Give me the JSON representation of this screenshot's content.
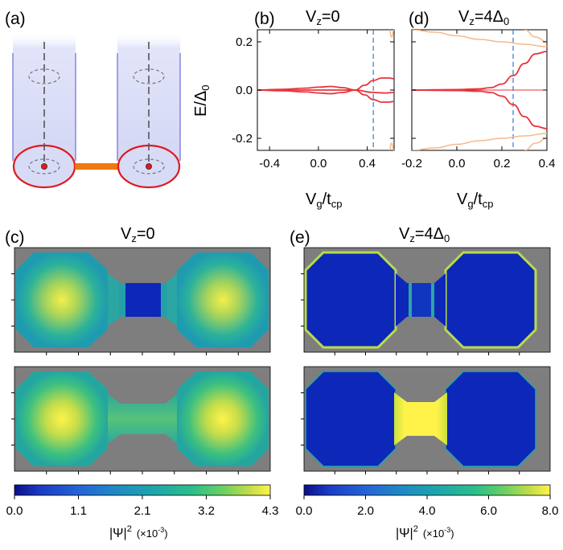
{
  "panels": {
    "a": "(a)",
    "b": "(b)",
    "c": "(c)",
    "d": "(d)",
    "e": "(e)"
  },
  "colors": {
    "red_line": "#e8343b",
    "orange_line": "#f7b98a",
    "dashed_blue": "#3a78c8",
    "cyl_fill": "#d9dcf6",
    "cyl_edge": "#6c6cd8",
    "disk_edge": "#e0181e",
    "bridge": "#f07810",
    "map_bg": "#7e7e7e"
  },
  "colormap": {
    "name": "viridis",
    "stops": [
      "#0b0f8a",
      "#1a3cc4",
      "#2563d8",
      "#1e8bc4",
      "#1fa6a8",
      "#2cbf8a",
      "#6fd061",
      "#c4dd4a",
      "#fff34a",
      "#ffffa0"
    ]
  },
  "chart_data": [
    {
      "panel": "(b)",
      "type": "line",
      "title": "V_z=0",
      "xlabel": "V_g/t_cp",
      "ylabel": "E/Δ_0",
      "xlim": [
        -0.5,
        0.62
      ],
      "ylim": [
        -0.25,
        0.25
      ],
      "xticks": [
        -0.4,
        0.0,
        0.4
      ],
      "xtick_labels": [
        "-0.4",
        "0.0",
        "0.4"
      ],
      "yticks": [
        -0.2,
        0.0,
        0.2
      ],
      "ytick_labels": [
        "-0.2",
        "0.0",
        "0.2"
      ],
      "vline": 0.45,
      "series": [
        {
          "x": [
            -0.5,
            -0.3,
            -0.1,
            0.0,
            0.1,
            0.2,
            0.3,
            0.38,
            0.45,
            0.52,
            0.58,
            0.62
          ],
          "values": [
            0.0,
            0.003,
            0.008,
            0.012,
            0.015,
            0.01,
            0.0,
            -0.02,
            -0.04,
            -0.05,
            -0.05,
            -0.047
          ],
          "color": "red"
        },
        {
          "x": [
            -0.5,
            -0.3,
            -0.1,
            0.0,
            0.1,
            0.2,
            0.3,
            0.38,
            0.45,
            0.52,
            0.58,
            0.62
          ],
          "values": [
            0.0,
            -0.003,
            -0.008,
            -0.012,
            -0.015,
            -0.01,
            0.0,
            0.02,
            0.04,
            0.05,
            0.05,
            0.047
          ],
          "color": "red"
        },
        {
          "x": [
            -0.5,
            0.0,
            0.3,
            0.45,
            0.55,
            0.62
          ],
          "values": [
            0.0,
            0.0,
            0.0,
            -0.01,
            -0.012,
            -0.01
          ],
          "color": "red"
        },
        {
          "x": [
            0.58,
            0.6,
            0.62
          ],
          "values": [
            0.25,
            0.22,
            0.25
          ],
          "color": "orange"
        },
        {
          "x": [
            0.58,
            0.6,
            0.62
          ],
          "values": [
            -0.25,
            -0.22,
            -0.25
          ],
          "color": "orange"
        }
      ]
    },
    {
      "panel": "(d)",
      "type": "line",
      "title": "V_z=4Δ_0",
      "xlabel": "V_g/t_cp",
      "ylabel": "",
      "xlim": [
        -0.2,
        0.4
      ],
      "ylim": [
        -0.25,
        0.25
      ],
      "xticks": [
        -0.2,
        0.0,
        0.2,
        0.4
      ],
      "xtick_labels": [
        "-0.2",
        "0.0",
        "0.2",
        "0.4"
      ],
      "yticks": [
        -0.2,
        0.0,
        0.2
      ],
      "vline": 0.25,
      "series": [
        {
          "x": [
            -0.2,
            -0.1,
            0.0,
            0.1,
            0.15,
            0.2,
            0.25,
            0.3,
            0.35,
            0.4
          ],
          "values": [
            0.0,
            0.001,
            0.002,
            0.005,
            0.01,
            0.025,
            0.06,
            0.11,
            0.15,
            0.16
          ],
          "color": "red"
        },
        {
          "x": [
            -0.2,
            -0.1,
            0.0,
            0.1,
            0.15,
            0.2,
            0.25,
            0.3,
            0.35,
            0.4
          ],
          "values": [
            0.0,
            -0.001,
            -0.002,
            -0.005,
            -0.01,
            -0.025,
            -0.06,
            -0.11,
            -0.15,
            -0.16
          ],
          "color": "red"
        },
        {
          "x": [
            -0.2,
            0.4
          ],
          "values": [
            0.0,
            0.0
          ],
          "color": "red_thin"
        },
        {
          "x": [
            -0.2,
            -0.1,
            0.0,
            0.1,
            0.2,
            0.3,
            0.4
          ],
          "values": [
            0.25,
            0.24,
            0.225,
            0.21,
            0.2,
            0.19,
            0.18
          ],
          "color": "orange"
        },
        {
          "x": [
            -0.2,
            -0.1,
            0.0,
            0.1,
            0.2,
            0.3,
            0.4
          ],
          "values": [
            -0.25,
            -0.24,
            -0.225,
            -0.21,
            -0.2,
            -0.19,
            -0.18
          ],
          "color": "orange"
        },
        {
          "x": [
            0.3,
            0.35,
            0.4
          ],
          "values": [
            0.25,
            0.22,
            0.2
          ],
          "color": "orange"
        },
        {
          "x": [
            0.3,
            0.35,
            0.4
          ],
          "values": [
            -0.25,
            -0.22,
            -0.2
          ],
          "color": "orange"
        }
      ]
    },
    {
      "panel": "(c)",
      "type": "heatmap",
      "title": "V_z=0",
      "colorbar_ticks": [
        "0.0",
        "1.1",
        "2.1",
        "3.2",
        "4.3"
      ],
      "colorbar_label": "|Ψ|² (×10⁻³)",
      "maps": [
        {
          "left_peak": 0.75,
          "right_peak": 0.75,
          "bridge": 0.05,
          "edge": 0.45
        },
        {
          "left_peak": 0.95,
          "right_peak": 0.95,
          "bridge": 0.55,
          "edge": 0.5
        }
      ]
    },
    {
      "panel": "(e)",
      "type": "heatmap",
      "title": "V_z=4Δ_0",
      "colorbar_ticks": [
        "0.0",
        "2.0",
        "4.0",
        "6.0",
        "8.0"
      ],
      "colorbar_label": "|Ψ|² (×10⁻³)",
      "maps": [
        {
          "left_peak": 0.02,
          "right_peak": 0.02,
          "bridge": 0.08,
          "edge": 0.6
        },
        {
          "left_peak": 0.02,
          "right_peak": 0.02,
          "bridge": 0.95,
          "edge": 0.3
        }
      ]
    }
  ],
  "labels": {
    "b_title": "V",
    "b_title_sub": "z",
    "b_title_rest": "=0",
    "d_title": "V",
    "d_title_sub": "z",
    "d_title_rest": "=4Δ",
    "d_title_sub2": "0",
    "ylabel_main": "E/Δ",
    "ylabel_sub": "0",
    "xlabel_main": "V",
    "xlabel_sub1": "g",
    "xlabel_mid": "/t",
    "xlabel_sub2": "cp",
    "cbar_label_main": "|Ψ|",
    "cbar_label_sup": "2",
    "cbar_label_unit": "(×10",
    "cbar_label_exp": "-3",
    "cbar_label_close": ")"
  }
}
